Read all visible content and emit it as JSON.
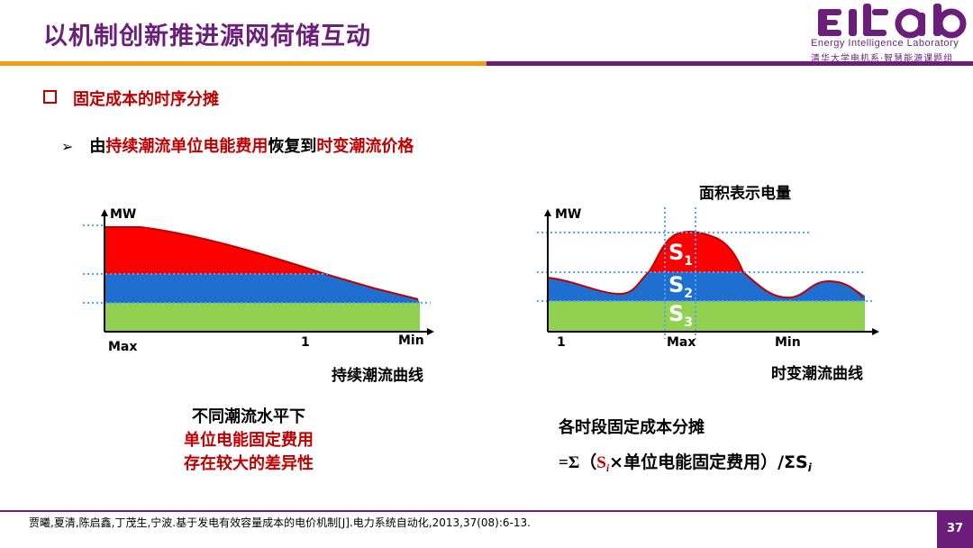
{
  "header": {
    "title": "以机制创新推进源网荷储互动",
    "logo_text": "EIlab",
    "logo_subtitle_en": "Energy Intelligence Laboratory",
    "logo_subtitle_cn": "清华大学电机系·智慧能源课题组"
  },
  "section": {
    "heading": "固定成本的时序分摊",
    "sub_prefix": "由",
    "sub_red1": "持续潮流单位电能费用",
    "sub_mid": "恢复到",
    "sub_red2": "时变潮流价格"
  },
  "left_chart": {
    "y_label": "MW",
    "x_labels": [
      "Max",
      "1",
      "Min"
    ],
    "caption": "持续潮流曲线",
    "colors": {
      "top": "#ff0000",
      "middle": "#1f6fd1",
      "bottom": "#92d050"
    }
  },
  "right_chart": {
    "top_label": "面积表示电量",
    "y_label": "MW",
    "x_labels": [
      "1",
      "Max",
      "Min"
    ],
    "caption": "时变潮流曲线",
    "areas": [
      "S1",
      "S2",
      "S3"
    ],
    "colors": {
      "top": "#ff0000",
      "middle": "#1f6fd1",
      "bottom": "#92d050"
    }
  },
  "left_note": {
    "line1": "不同潮流水平下",
    "line2": "单位电能固定费用",
    "line3": "存在较大的差异性"
  },
  "formula": {
    "title": "各时段固定成本分摊",
    "prefix": "=Σ（",
    "si": "S",
    "sub_i": "i",
    "middle": "×单位电能固定费用）/ΣS",
    "sub_i2": "i"
  },
  "footer": {
    "reference": "贾曦,夏清,陈启鑫,丁茂生,宁波.基于发电有效容量成本的电价机制[J].电力系统自动化,2013,37(08):6-13.",
    "page": "37"
  }
}
